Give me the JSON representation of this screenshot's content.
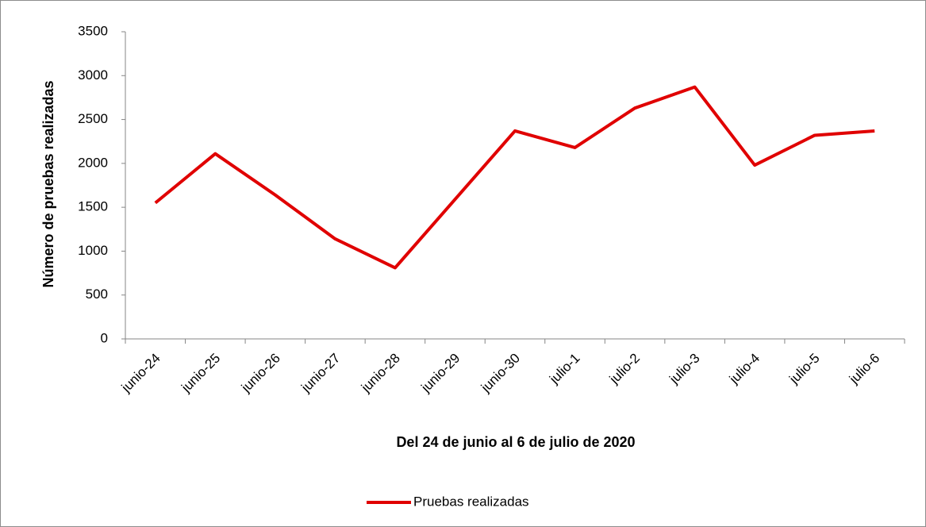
{
  "chart_data": {
    "type": "line",
    "y_label": "Número de pruebas realizadas",
    "x_label": "Del 24 de junio al 6 de julio de 2020",
    "categories": [
      "junio-24",
      "junio-25",
      "junio-26",
      "junio-27",
      "junio-28",
      "junio-29",
      "junio-30",
      "julio-1",
      "julio-2",
      "julio-3",
      "julio-4",
      "julio-5",
      "julio-6"
    ],
    "series": [
      {
        "name": "Pruebas realizadas",
        "color": "#e00000",
        "values": [
          1550,
          2110,
          1640,
          1140,
          810,
          1590,
          2370,
          2180,
          2630,
          2870,
          1980,
          2320,
          2370
        ]
      }
    ],
    "ylim": [
      0,
      3500
    ],
    "yticks": [
      0,
      500,
      1000,
      1500,
      2000,
      2500,
      3000,
      3500
    ],
    "legend": "bottom"
  }
}
